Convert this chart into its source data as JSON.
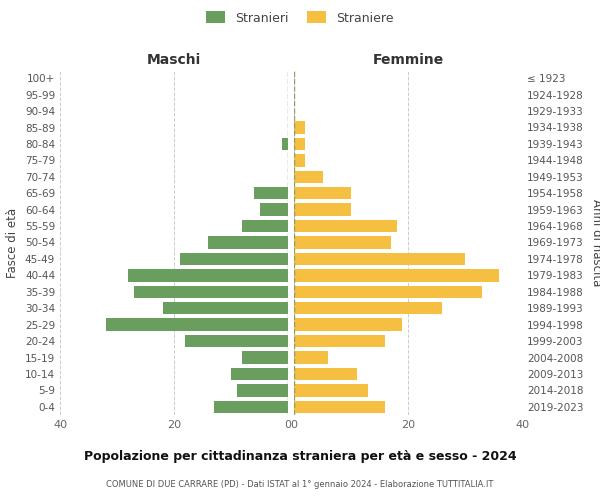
{
  "age_groups": [
    "0-4",
    "5-9",
    "10-14",
    "15-19",
    "20-24",
    "25-29",
    "30-34",
    "35-39",
    "40-44",
    "45-49",
    "50-54",
    "55-59",
    "60-64",
    "65-69",
    "70-74",
    "75-79",
    "80-84",
    "85-89",
    "90-94",
    "95-99",
    "100+"
  ],
  "birth_years": [
    "2019-2023",
    "2014-2018",
    "2009-2013",
    "2004-2008",
    "1999-2003",
    "1994-1998",
    "1989-1993",
    "1984-1988",
    "1979-1983",
    "1974-1978",
    "1969-1973",
    "1964-1968",
    "1959-1963",
    "1954-1958",
    "1949-1953",
    "1944-1948",
    "1939-1943",
    "1934-1938",
    "1929-1933",
    "1924-1928",
    "≤ 1923"
  ],
  "maschi": [
    13,
    9,
    10,
    8,
    18,
    32,
    22,
    27,
    28,
    19,
    14,
    8,
    5,
    6,
    0,
    0,
    1,
    0,
    0,
    0,
    0
  ],
  "femmine": [
    16,
    13,
    11,
    6,
    16,
    19,
    26,
    33,
    36,
    30,
    17,
    18,
    10,
    10,
    5,
    2,
    2,
    2,
    0,
    0,
    0
  ],
  "color_maschi": "#6a9e5e",
  "color_femmine": "#f5bf42",
  "background_color": "#ffffff",
  "grid_color": "#cccccc",
  "title": "Popolazione per cittadinanza straniera per età e sesso - 2024",
  "subtitle": "COMUNE DI DUE CARRARE (PD) - Dati ISTAT al 1° gennaio 2024 - Elaborazione TUTTITALIA.IT",
  "ylabel_left": "Fasce di età",
  "ylabel_right": "Anni di nascita",
  "header_left": "Maschi",
  "header_right": "Femmine",
  "legend_maschi": "Stranieri",
  "legend_femmine": "Straniere",
  "xlim": 40,
  "bar_height": 0.75
}
